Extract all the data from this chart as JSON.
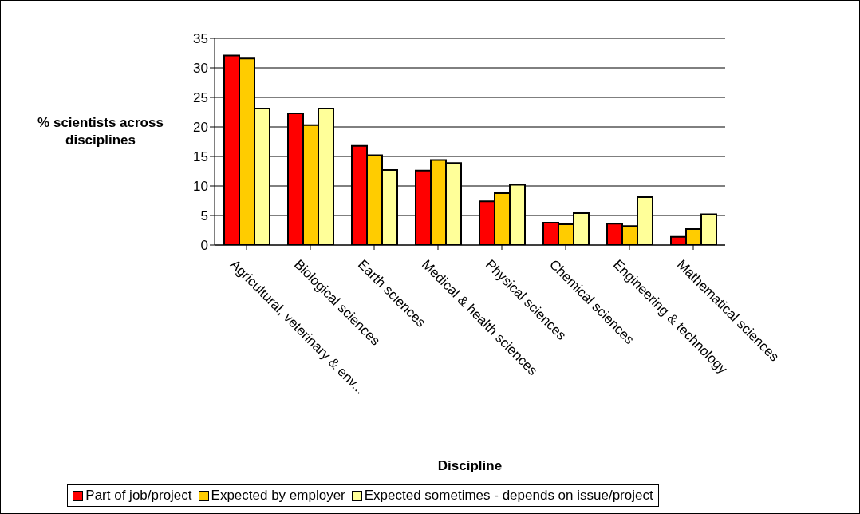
{
  "chart_data": {
    "type": "bar",
    "ylabel": "% scientists across disciplines",
    "xlabel": "Discipline",
    "categories": [
      "Agricultural, veterinary & env...",
      "Biological sciences",
      "Earth sciences",
      "Medical & health sciences",
      "Physical sciences",
      "Chemical sciences",
      "Engineering & technology",
      "Mathematical sciences"
    ],
    "series": [
      {
        "name": "Part of job/project",
        "color": "#ff0000",
        "values": [
          32.1,
          22.3,
          16.8,
          12.6,
          7.4,
          3.8,
          3.6,
          1.4
        ]
      },
      {
        "name": "Expected by employer",
        "color": "#ffcc00",
        "values": [
          31.6,
          20.3,
          15.2,
          14.4,
          8.8,
          3.5,
          3.2,
          2.7
        ]
      },
      {
        "name": "Expected sometimes -  depends on issue/project",
        "color": "#ffff99",
        "values": [
          23.1,
          23.1,
          12.7,
          13.9,
          10.2,
          5.4,
          8.1,
          5.2
        ]
      }
    ],
    "ylim": [
      0,
      35
    ],
    "yticks": [
      0,
      5,
      10,
      15,
      20,
      25,
      30,
      35
    ],
    "grid": "y",
    "legend": "bottom"
  }
}
